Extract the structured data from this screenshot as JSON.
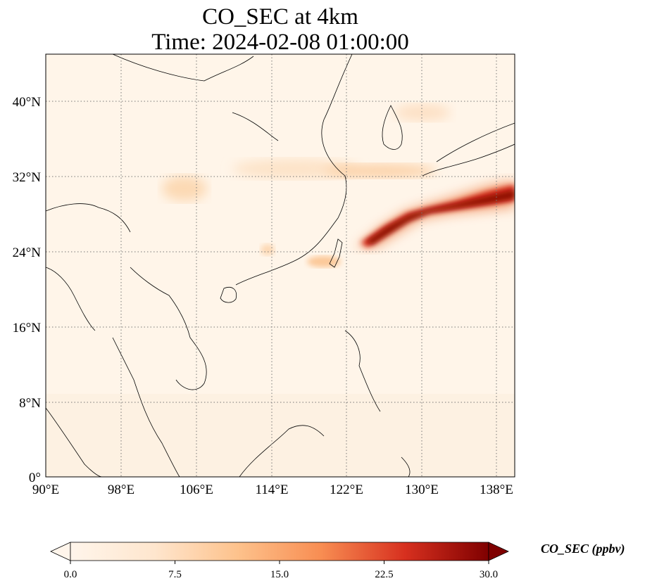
{
  "title_line1": "CO_SEC at 4km",
  "title_line2": "Time: 2024-02-08 01:00:00",
  "lon_ticks": [
    "90°E",
    "98°E",
    "106°E",
    "114°E",
    "122°E",
    "130°E",
    "138°E"
  ],
  "lat_ticks": [
    "0°",
    "8°N",
    "16°N",
    "24°N",
    "32°N",
    "40°N"
  ],
  "colorbar": {
    "label": "CO_SEC (ppbv)",
    "ticks": [
      "0.0",
      "7.5",
      "15.0",
      "22.5",
      "30.0"
    ],
    "min": 0,
    "max": 30,
    "colors": [
      "#fff5eb",
      "#fdd9b4",
      "#fdae6b",
      "#f16913",
      "#b42a0b",
      "#7f0000"
    ]
  },
  "map": {
    "lon_range": [
      90,
      140
    ],
    "lat_range": [
      0,
      45
    ],
    "gridlines": "dotted"
  }
}
